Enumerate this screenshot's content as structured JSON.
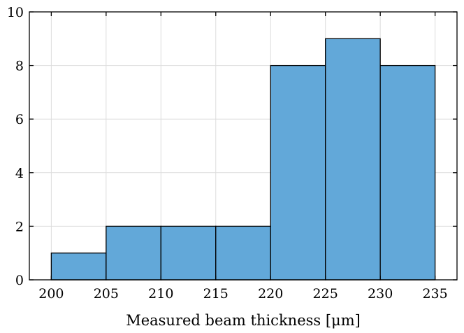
{
  "chart_data": {
    "type": "histogram",
    "title": "",
    "xlabel": "Measured beam thickness [μm]",
    "ylabel": "",
    "bin_edges": [
      200,
      205,
      210,
      215,
      220,
      225,
      230,
      235
    ],
    "values": [
      1,
      2,
      2,
      2,
      8,
      9,
      8
    ],
    "xlim": [
      198,
      237
    ],
    "ylim": [
      0,
      10
    ],
    "xticks": [
      200,
      205,
      210,
      215,
      220,
      225,
      230,
      235
    ],
    "yticks": [
      0,
      2,
      4,
      6,
      8,
      10
    ],
    "grid": true,
    "colors": {
      "bar_fill": "#62a8d9",
      "bar_edge": "#000000",
      "grid": "#dcdcdc",
      "background": "#ffffff"
    }
  }
}
